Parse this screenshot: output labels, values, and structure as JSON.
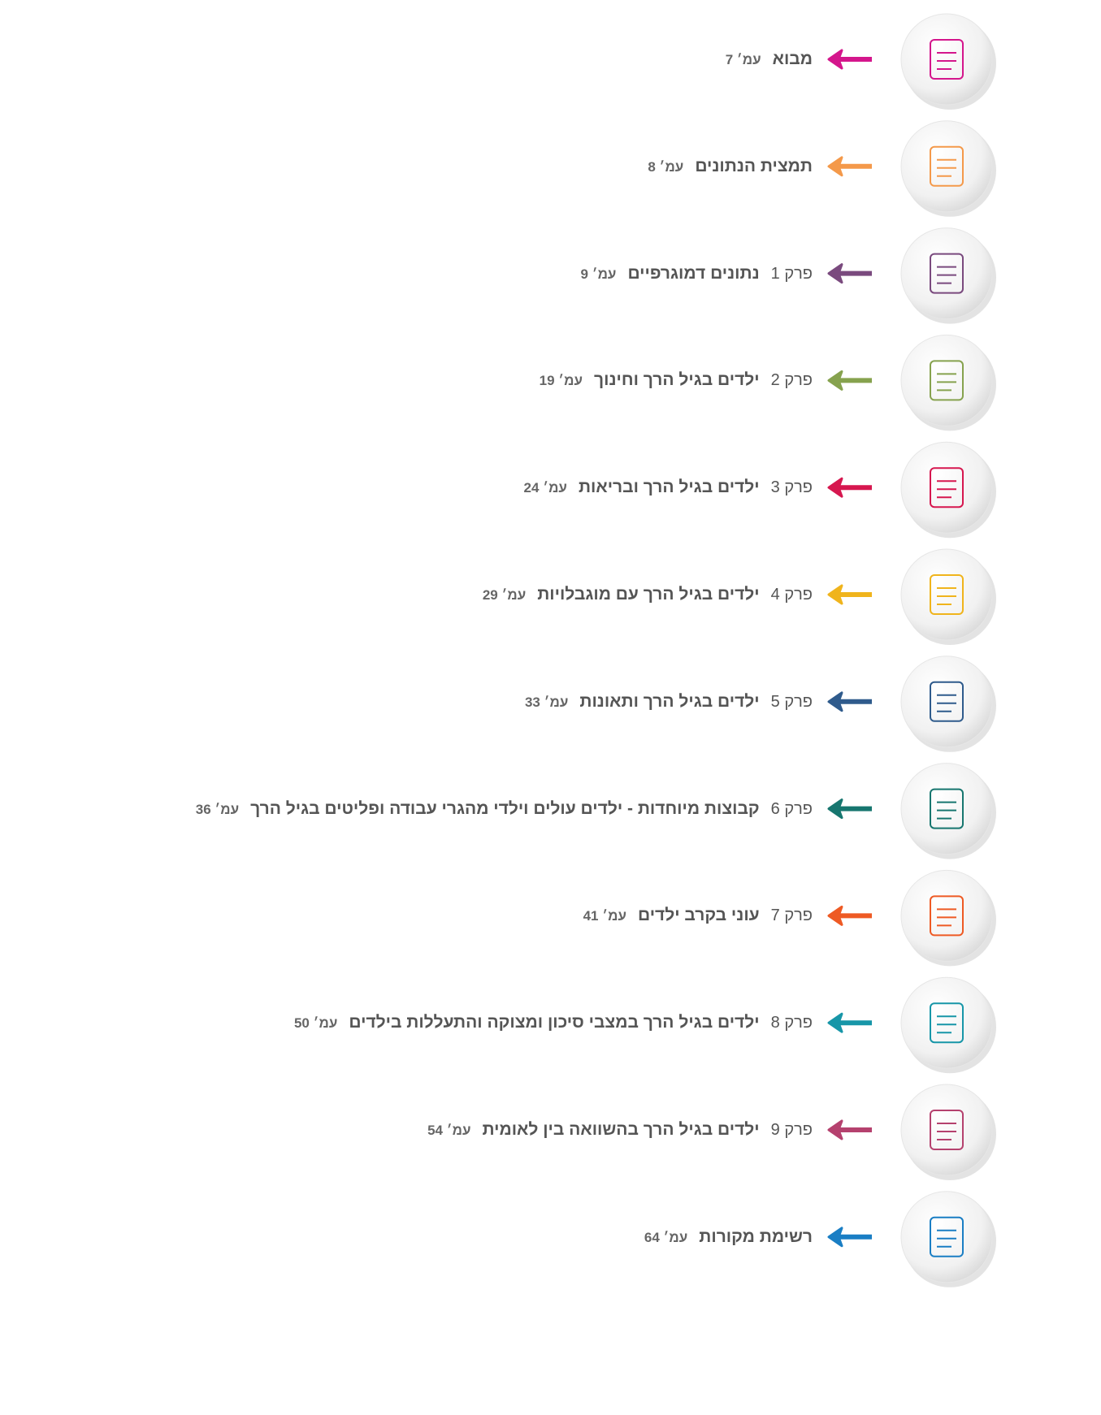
{
  "items": [
    {
      "title": "מבוא",
      "page": "עמ׳ 7",
      "color": "#d4168c"
    },
    {
      "title": "תמצית הנתונים",
      "page": "עמ׳ 8",
      "color": "#f4994a"
    },
    {
      "chapter": "פרק 1",
      "title": "נתונים דמוגרפיים",
      "page": "עמ׳ 9",
      "color": "#7a4a7e"
    },
    {
      "chapter": "פרק 2",
      "title": "ילדים בגיל הרך וחינוך",
      "page": "עמ׳ 19",
      "color": "#86a24e"
    },
    {
      "chapter": "פרק 3",
      "title": "ילדים בגיל הרך ובריאות",
      "page": "עמ׳ 24",
      "color": "#d6174f"
    },
    {
      "chapter": "פרק 4",
      "title": "ילדים בגיל הרך עם מוגבלויות",
      "page": "עמ׳ 29",
      "color": "#f0b41c"
    },
    {
      "chapter": "פרק 5",
      "title": "ילדים בגיל הרך ותאונות",
      "page": "עמ׳ 33",
      "color": "#2f5b8c"
    },
    {
      "chapter": "פרק 6",
      "title": "קבוצות מיוחדות - ילדים עולים וילדי מהגרי עבודה ופליטים בגיל הרך",
      "page": "עמ׳ 36",
      "color": "#17766f"
    },
    {
      "chapter": "פרק 7",
      "title": "עוני בקרב ילדים",
      "page": "עמ׳ 41",
      "color": "#ee5a24"
    },
    {
      "chapter": "פרק 8",
      "title": "ילדים בגיל הרך במצבי סיכון ומצוקה והתעללות בילדים",
      "page": "עמ׳ 50",
      "color": "#1796a8"
    },
    {
      "chapter": "פרק 9",
      "title": "ילדים בגיל הרך בהשוואה בין לאומית",
      "page": "עמ׳ 54",
      "color": "#b5416e"
    },
    {
      "title": "רשימת מקורות",
      "page": "עמ׳ 64",
      "color": "#1a7ec4"
    }
  ]
}
